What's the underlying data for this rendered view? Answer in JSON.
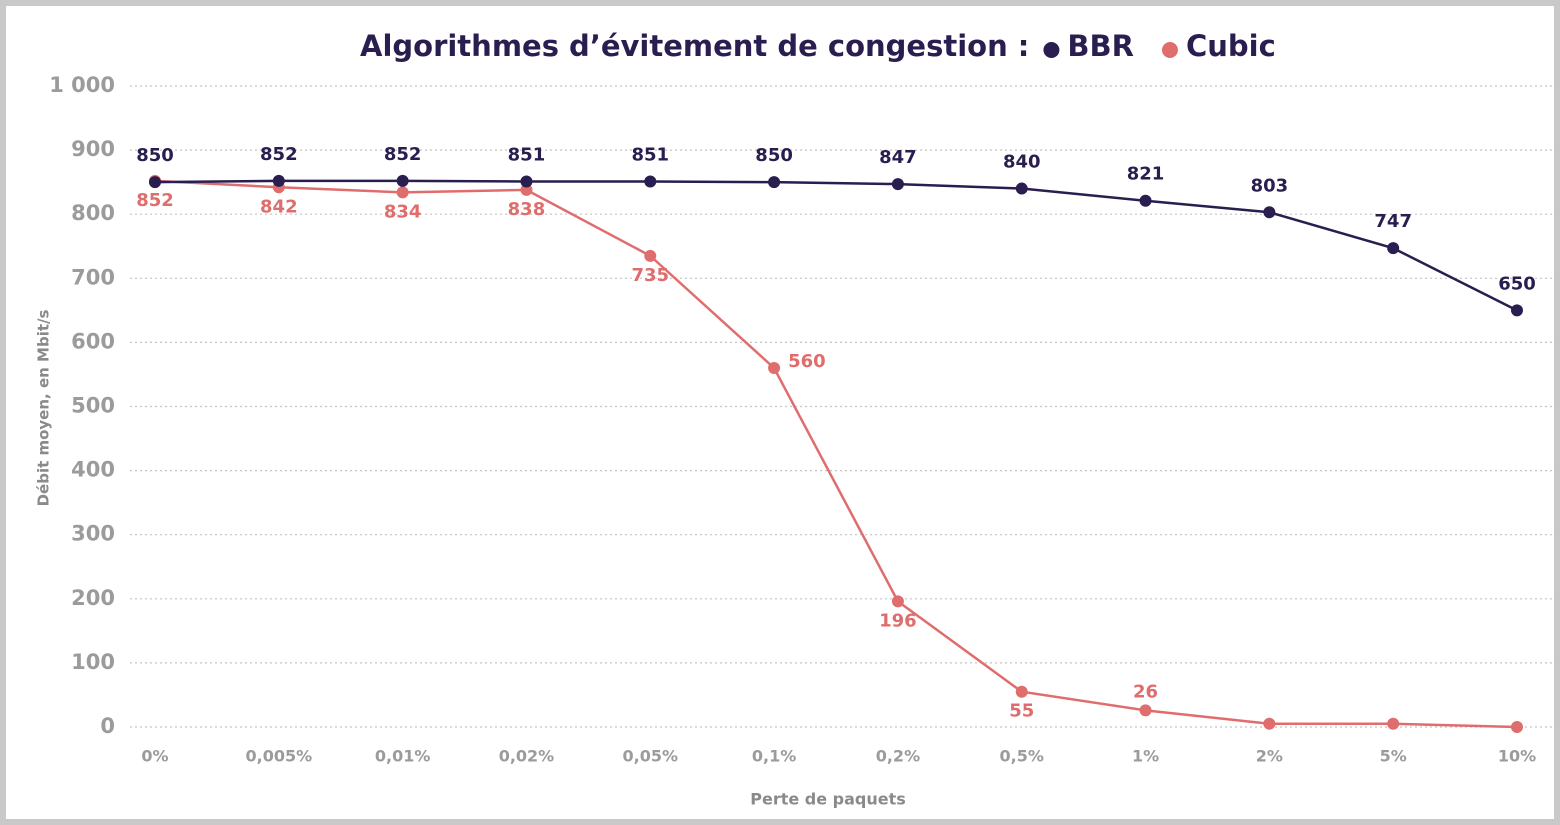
{
  "chart_data": {
    "type": "line",
    "title": "Algorithmes d’évitement de congestion :",
    "x_label": "Perte de paquets",
    "y_label": "Débit moyen, en Mbit/s",
    "legend": "top",
    "grid": true,
    "categories": [
      "0%",
      "0,005%",
      "0,01%",
      "0,02%",
      "0,05%",
      "0,1%",
      "0,2%",
      "0,5%",
      "1%",
      "2%",
      "5%",
      "10%"
    ],
    "series": [
      {
        "name": "BBR",
        "color": "#2a1d4f",
        "values": [
          850,
          852,
          852,
          851,
          851,
          850,
          847,
          840,
          821,
          803,
          747,
          650
        ]
      },
      {
        "name": "Cubic",
        "color": "#e06d6d",
        "values": [
          852,
          842,
          834,
          838,
          735,
          560,
          196,
          55,
          26,
          5,
          5,
          0
        ],
        "value_labels": [
          "852",
          "842",
          "834",
          "838",
          "735",
          "560",
          "196",
          "55",
          "26",
          null,
          null,
          null
        ]
      }
    ],
    "ylim": [
      0,
      1000
    ],
    "yticks": [
      0,
      100,
      200,
      300,
      400,
      500,
      600,
      700,
      800,
      900,
      {
        "value": 1000,
        "label": "1 000"
      }
    ]
  }
}
